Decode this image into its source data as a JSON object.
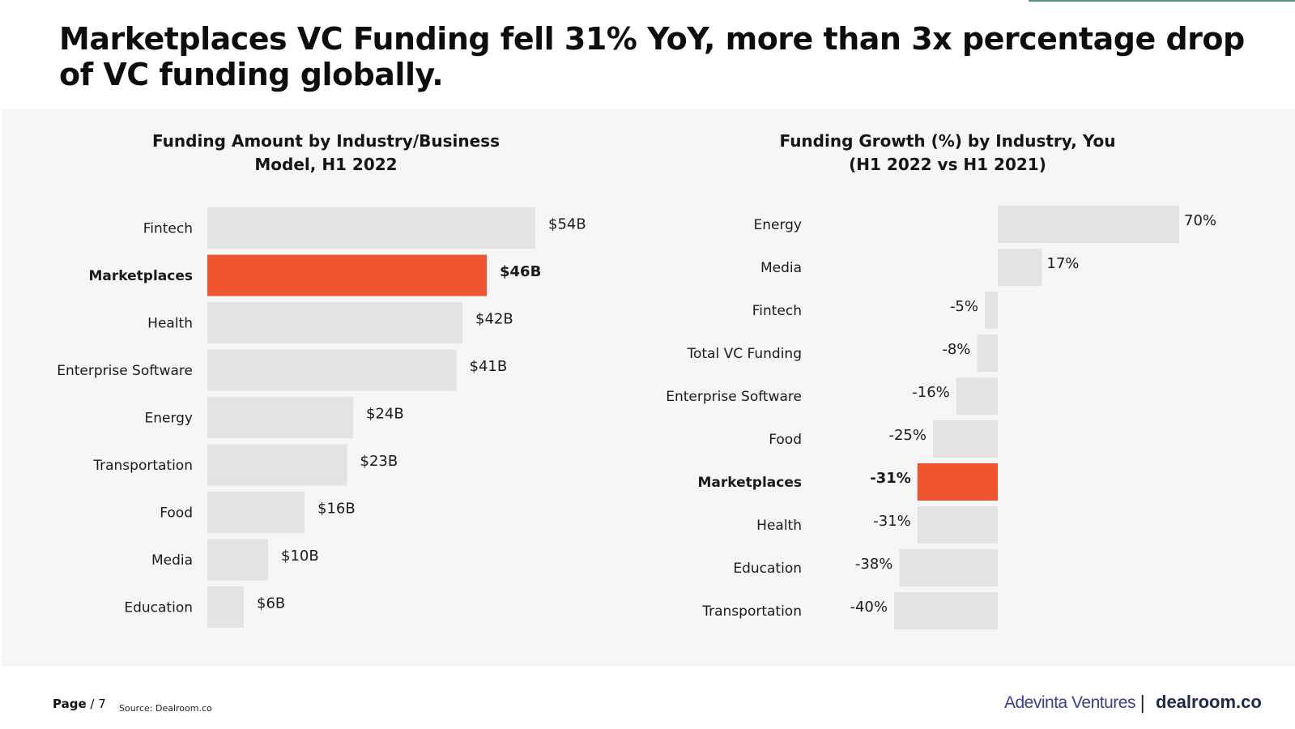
{
  "headline": "Marketplaces VC Funding fell 31% YoY, more than 3x percentage drop of VC funding globally.",
  "colors": {
    "highlight": "#ef5430",
    "bar": "#e3e3e3",
    "panel": "#f6f6f6"
  },
  "chart_data": [
    {
      "type": "bar",
      "orientation": "horizontal",
      "title": "Funding Amount by Industry/Business Model, H1 2022",
      "title_lines": [
        "Funding Amount by Industry/Business",
        "Model, H1 2022"
      ],
      "unit": "$B",
      "categories": [
        "Fintech",
        "Marketplaces",
        "Health",
        "Enterprise Software",
        "Energy",
        "Transportation",
        "Food",
        "Media",
        "Education"
      ],
      "values": [
        54,
        46,
        42,
        41,
        24,
        23,
        16,
        10,
        6
      ],
      "value_labels": [
        "$54B",
        "$46B",
        "$42B",
        "$41B",
        "$24B",
        "$23B",
        "$16B",
        "$10B",
        "$6B"
      ],
      "highlight": "Marketplaces",
      "xlim": [
        0,
        54
      ]
    },
    {
      "type": "bar",
      "orientation": "horizontal",
      "title": "Funding Growth (%) by Industry, You (H1 2022 vs H1 2021)",
      "title_lines": [
        "Funding Growth (%) by Industry, You",
        "(H1 2022 vs H1 2021)"
      ],
      "unit": "%",
      "categories": [
        "Energy",
        "Media",
        "Fintech",
        "Total VC Funding",
        "Enterprise Software",
        "Food",
        "Marketplaces",
        "Health",
        "Education",
        "Transportation"
      ],
      "values": [
        70,
        17,
        -5,
        -8,
        -16,
        -25,
        -31,
        -31,
        -38,
        -40
      ],
      "value_labels": [
        "70%",
        "17%",
        "-5%",
        "-8%",
        "-16%",
        "-25%",
        "-31%",
        "-31%",
        "-38%",
        "-40%"
      ],
      "highlight": "Marketplaces",
      "xlim": [
        -40,
        70
      ]
    }
  ],
  "footer": {
    "page_label": "Page",
    "page_number": "/ 7",
    "source": "Source: Dealroom.co",
    "logo_adevinta": "Adevinta Ventures",
    "logo_separator": "|",
    "logo_dealroom": "dealroom.co"
  }
}
